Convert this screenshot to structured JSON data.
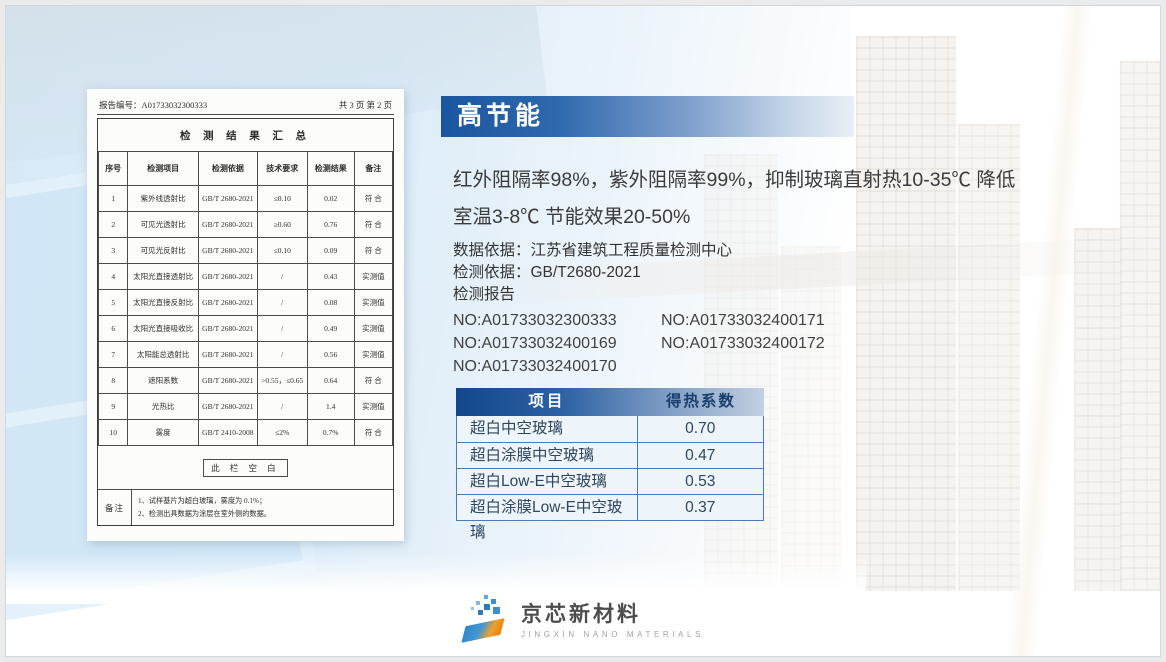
{
  "banner": {
    "title": "高节能"
  },
  "description_lines": [
    "红外阻隔率98%，紫外阻隔率99%，抑制玻璃直射热10-35℃ 降低",
    "室温3-8℃ 节能效果20-50%"
  ],
  "meta_lines": [
    "数据依据：江苏省建筑工程质量检测中心",
    "检测依据：GB/T2680-2021",
    "检测报告"
  ],
  "report_numbers": [
    [
      "NO:A01733032300333",
      "NO:A01733032400171"
    ],
    [
      "NO:A01733032400169",
      "NO:A01733032400172"
    ],
    [
      "NO:A01733032400170",
      ""
    ]
  ],
  "document": {
    "report_no": "报告编号：A01733032300333",
    "page_info": "共 3 页 第 2 页",
    "title": "检 测 结 果 汇 总",
    "columns": [
      "序号",
      "检测项目",
      "检测依据",
      "技术要求",
      "检测结果",
      "备注"
    ],
    "rows": [
      [
        "1",
        "紫外线透射比",
        "GB/T 2680-2021",
        "≤0.10",
        "0.02",
        "符 合"
      ],
      [
        "2",
        "可见光透射比",
        "GB/T 2680-2021",
        "≥0.60",
        "0.76",
        "符 合"
      ],
      [
        "3",
        "可见光反射比",
        "GB/T 2680-2021",
        "≤0.10",
        "0.09",
        "符 合"
      ],
      [
        "4",
        "太阳光直接透射比",
        "GB/T 2680-2021",
        "/",
        "0.43",
        "实测值"
      ],
      [
        "5",
        "太阳光直接反射比",
        "GB/T 2680-2021",
        "/",
        "0.08",
        "实测值"
      ],
      [
        "6",
        "太阳光直接吸收比",
        "GB/T 2680-2021",
        "/",
        "0.49",
        "实测值"
      ],
      [
        "7",
        "太阳能总透射比",
        "GB/T 2680-2021",
        "/",
        "0.56",
        "实测值"
      ],
      [
        "8",
        "遮阳系数",
        "GB/T 2680-2021",
        ">0.55，≤0.65",
        "0.64",
        "符 合"
      ],
      [
        "9",
        "光热比",
        "GB/T 2680-2021",
        "/",
        "1.4",
        "实测值"
      ],
      [
        "10",
        "雾度",
        "GB/T 2410-2008",
        "≤2%",
        "0.7%",
        "符 合"
      ]
    ],
    "blank_note": "此 栏 空 白",
    "remark_label": "备注",
    "remarks": [
      "1、试样基片为超白玻璃，雾度为 0.1%；",
      "2、检测出具数据为涂层在室外侧的数据。"
    ]
  },
  "heat_table": {
    "columns": [
      "项目",
      "得热系数"
    ],
    "rows": [
      [
        "超白中空玻璃",
        "0.70"
      ],
      [
        "超白涂膜中空玻璃",
        "0.47"
      ],
      [
        "超白Low-E中空玻璃",
        "0.53"
      ],
      [
        "超白涂膜Low-E中空玻璃",
        "0.37"
      ]
    ]
  },
  "logo": {
    "name": "京芯新材料",
    "subtitle": "JINGXIN NANO MATERIALS"
  },
  "colors": {
    "banner_blue": "#1a55a0",
    "table_header_blue": "#14468a",
    "table_border_blue": "#4a7ab8",
    "row_bg": "#edf4fa",
    "bg_light_blue": "#d9eaf6"
  }
}
